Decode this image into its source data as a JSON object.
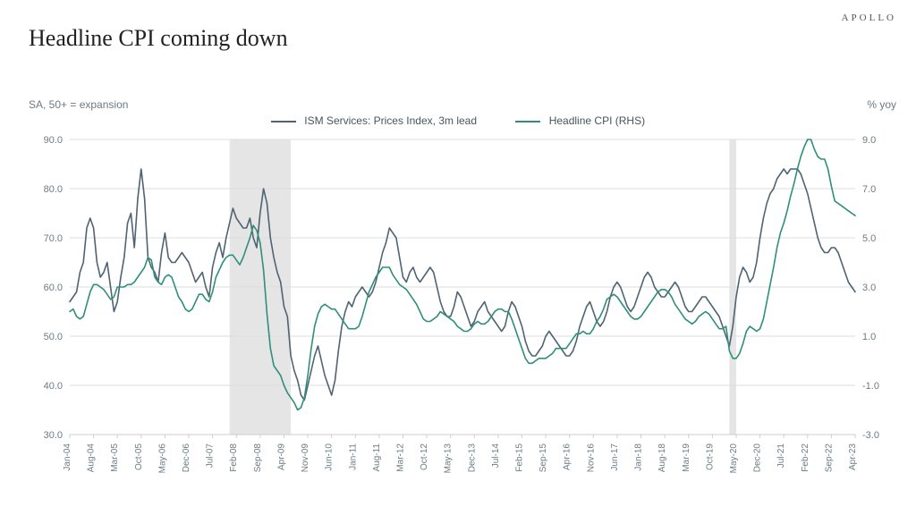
{
  "brand": "APOLLO",
  "title": "Headline CPI coming down",
  "y_left_label": "SA, 50+  = expansion",
  "y_right_label": "% yoy",
  "legend": {
    "series1": "ISM Services: Prices Index, 3m lead",
    "series2": "Headline CPI (RHS)"
  },
  "chart": {
    "type": "dual-axis-line",
    "background_color": "#ffffff",
    "grid_color": "#d9dde0",
    "axis_color": "#c9cfd3",
    "recession_band_color": "#d0d0d0",
    "recession_band_opacity": 0.55,
    "series1_color": "#4f6373",
    "series2_color": "#2f8f7a",
    "line_width": 1.6,
    "y_left": {
      "min": 30.0,
      "max": 90.0,
      "step": 10.0
    },
    "y_right": {
      "min": -3.0,
      "max": 9.0,
      "step": 2.0
    },
    "n_points": 232,
    "x_labels_idx": [
      0,
      7,
      14,
      21,
      28,
      35,
      42,
      49,
      56,
      63,
      70,
      77,
      84,
      91,
      98,
      105,
      112,
      119,
      126,
      133,
      140,
      147,
      154,
      161,
      168,
      175,
      182,
      189,
      196,
      203,
      210,
      217,
      224,
      231
    ],
    "x_labels": [
      "Jan-04",
      "Aug-04",
      "Mar-05",
      "Oct-05",
      "May-06",
      "Dec-06",
      "Jul-07",
      "Feb-08",
      "Sep-08",
      "Apr-09",
      "Nov-09",
      "Jun-10",
      "Jan-11",
      "Aug-11",
      "Mar-12",
      "Oct-12",
      "May-13",
      "Dec-13",
      "Jul-14",
      "Feb-15",
      "Sep-15",
      "Apr-16",
      "Nov-16",
      "Jun-17",
      "Jan-18",
      "Aug-18",
      "Mar-19",
      "Oct-19",
      "May-20",
      "Dec-20",
      "Jul-21",
      "Feb-22",
      "Sep-22",
      "Apr-23"
    ],
    "recessions": [
      {
        "start_idx": 47,
        "end_idx": 65
      },
      {
        "start_idx": 194,
        "end_idx": 196
      }
    ],
    "ism": [
      57,
      58,
      59,
      63,
      65,
      72,
      74,
      72,
      65,
      62,
      63,
      65,
      60,
      55,
      57,
      62,
      66,
      73,
      75,
      68,
      78,
      84,
      78,
      66,
      64,
      63,
      61,
      67,
      71,
      66,
      65,
      65,
      66,
      67,
      66,
      65,
      63,
      61,
      62,
      63,
      60,
      58,
      64,
      67,
      69,
      66,
      70,
      73,
      76,
      74,
      73,
      72,
      72,
      74,
      70,
      68,
      75,
      80,
      77,
      70,
      66,
      63,
      61,
      56,
      54,
      46,
      43,
      41,
      38,
      37,
      40,
      43,
      46,
      48,
      45,
      42,
      40,
      38,
      41,
      47,
      52,
      55,
      57,
      56,
      58,
      59,
      60,
      59,
      58,
      59,
      61,
      64,
      67,
      69,
      72,
      71,
      70,
      66,
      62,
      61,
      63,
      64,
      62,
      61,
      62,
      63,
      64,
      63,
      60,
      57,
      55,
      54,
      54,
      56,
      59,
      58,
      56,
      54,
      52,
      53,
      55,
      56,
      57,
      55,
      54,
      53,
      52,
      51,
      52,
      55,
      57,
      56,
      54,
      52,
      49,
      47,
      46,
      46,
      47,
      48,
      50,
      51,
      50,
      49,
      48,
      47,
      46,
      46,
      47,
      49,
      52,
      54,
      56,
      57,
      55,
      53,
      52,
      53,
      55,
      58,
      60,
      61,
      60,
      58,
      56,
      55,
      56,
      58,
      60,
      62,
      63,
      62,
      60,
      59,
      58,
      58,
      59,
      60,
      61,
      60,
      58,
      56,
      55,
      55,
      56,
      57,
      58,
      58,
      57,
      56,
      55,
      54,
      52,
      50,
      48,
      52,
      58,
      62,
      64,
      63,
      61,
      62,
      65,
      70,
      74,
      77,
      79,
      80,
      82,
      83,
      84,
      83,
      84,
      84,
      84,
      83,
      81,
      79,
      76,
      73,
      70,
      68,
      67,
      67,
      68,
      68,
      67,
      65,
      63,
      61,
      60,
      59
    ],
    "cpi": [
      2.0,
      2.1,
      1.8,
      1.7,
      1.8,
      2.3,
      2.8,
      3.1,
      3.1,
      3.0,
      2.9,
      2.7,
      2.5,
      2.6,
      3.0,
      3.0,
      3.0,
      3.1,
      3.1,
      3.2,
      3.4,
      3.6,
      3.8,
      4.2,
      4.1,
      3.4,
      3.2,
      3.1,
      3.4,
      3.5,
      3.4,
      3.0,
      2.6,
      2.4,
      2.1,
      2.0,
      2.1,
      2.4,
      2.7,
      2.7,
      2.5,
      2.4,
      2.8,
      3.4,
      3.7,
      4.0,
      4.2,
      4.3,
      4.3,
      4.1,
      3.9,
      4.2,
      4.6,
      5.0,
      5.5,
      5.3,
      4.8,
      3.7,
      1.9,
      0.5,
      -0.2,
      -0.4,
      -0.6,
      -1.0,
      -1.3,
      -1.5,
      -1.7,
      -2.0,
      -1.9,
      -1.5,
      -0.6,
      0.5,
      1.4,
      1.9,
      2.2,
      2.3,
      2.2,
      2.1,
      2.1,
      1.9,
      1.7,
      1.5,
      1.3,
      1.3,
      1.3,
      1.4,
      1.8,
      2.3,
      2.8,
      3.1,
      3.4,
      3.6,
      3.8,
      3.8,
      3.8,
      3.5,
      3.3,
      3.1,
      3.0,
      2.9,
      2.7,
      2.5,
      2.3,
      2.0,
      1.7,
      1.6,
      1.6,
      1.7,
      1.8,
      2.0,
      1.9,
      1.8,
      1.7,
      1.6,
      1.4,
      1.3,
      1.2,
      1.2,
      1.3,
      1.5,
      1.6,
      1.5,
      1.5,
      1.6,
      1.8,
      2.0,
      2.1,
      2.1,
      2.0,
      2.0,
      1.7,
      1.3,
      0.9,
      0.5,
      0.1,
      -0.1,
      -0.1,
      0.0,
      0.1,
      0.1,
      0.1,
      0.2,
      0.3,
      0.5,
      0.5,
      0.5,
      0.5,
      0.7,
      0.9,
      1.1,
      1.1,
      1.2,
      1.1,
      1.1,
      1.3,
      1.6,
      1.8,
      2.1,
      2.5,
      2.6,
      2.7,
      2.6,
      2.4,
      2.2,
      2.0,
      1.8,
      1.7,
      1.7,
      1.8,
      2.0,
      2.2,
      2.4,
      2.6,
      2.8,
      2.9,
      2.9,
      2.8,
      2.6,
      2.3,
      2.1,
      1.9,
      1.7,
      1.6,
      1.5,
      1.6,
      1.8,
      1.9,
      2.0,
      1.9,
      1.7,
      1.5,
      1.3,
      1.3,
      1.4,
      0.4,
      0.1,
      0.1,
      0.3,
      0.7,
      1.2,
      1.4,
      1.3,
      1.2,
      1.3,
      1.7,
      2.4,
      3.1,
      3.8,
      4.6,
      5.2,
      5.6,
      6.1,
      6.7,
      7.2,
      7.8,
      8.3,
      8.7,
      9.0,
      9.0,
      8.6,
      8.3,
      8.2,
      8.2,
      7.8,
      7.1,
      6.5,
      6.4,
      6.3,
      6.2,
      6.1,
      6.0,
      5.9
    ]
  }
}
